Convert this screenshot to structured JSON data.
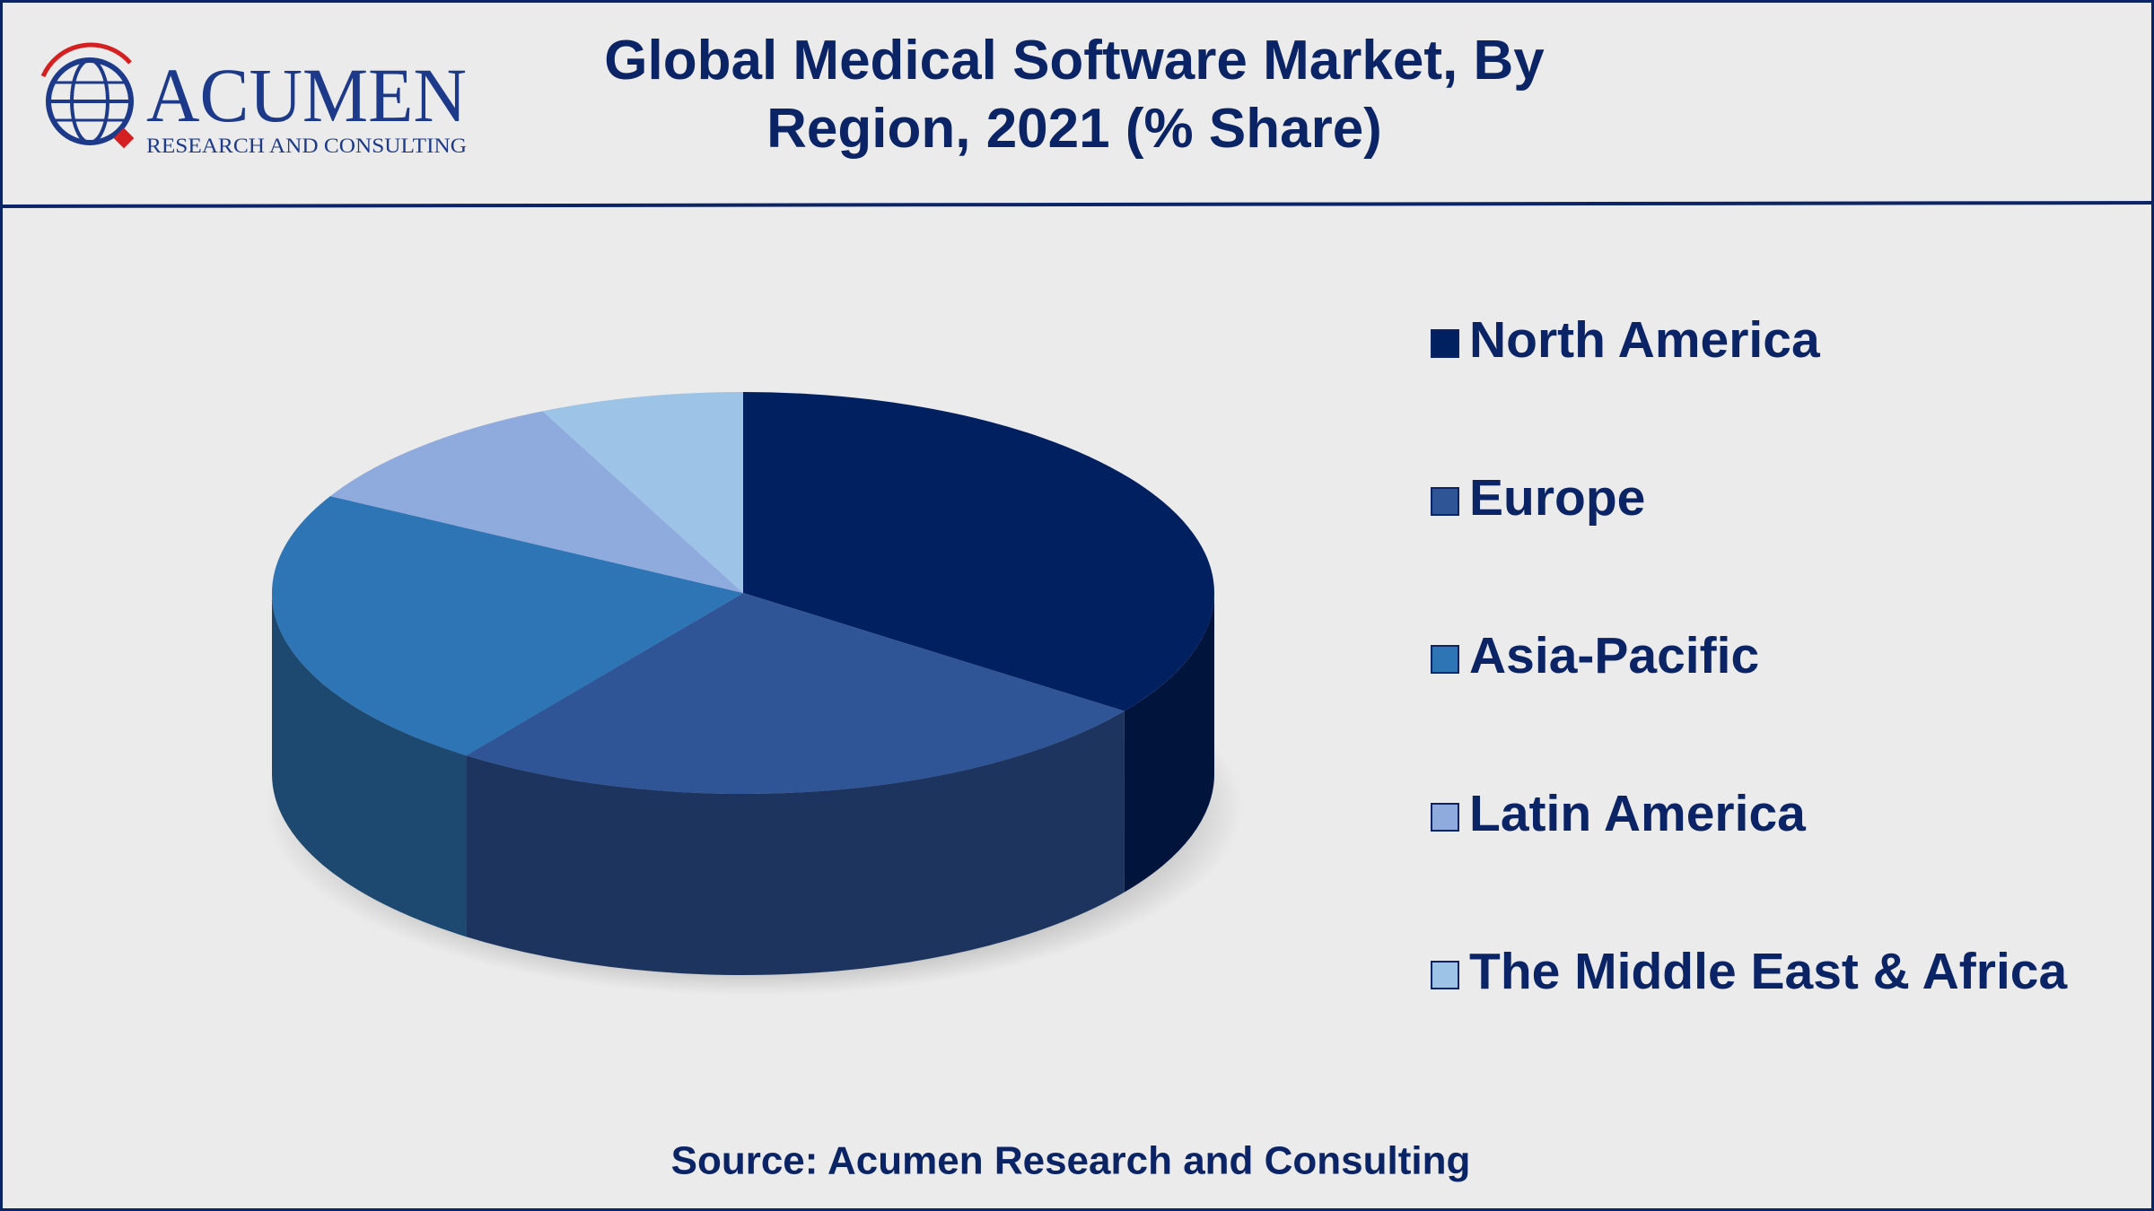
{
  "logo": {
    "name": "ACUMEN",
    "tagline": "RESEARCH AND CONSULTING"
  },
  "chart_data": {
    "type": "pie",
    "title": "Global Medical Software Market, By Region, 2021 (% Share)",
    "categories": [
      "North America",
      "Europe",
      "Asia-Pacific",
      "Latin America",
      "The Middle East & Africa"
    ],
    "values": [
      35,
      25,
      23,
      10,
      7
    ],
    "colors": [
      "#002060",
      "#2F5597",
      "#2E75B6",
      "#8FAADC",
      "#9DC3E6"
    ],
    "legend": "right",
    "source": "Source: Acumen Research and Consulting"
  }
}
